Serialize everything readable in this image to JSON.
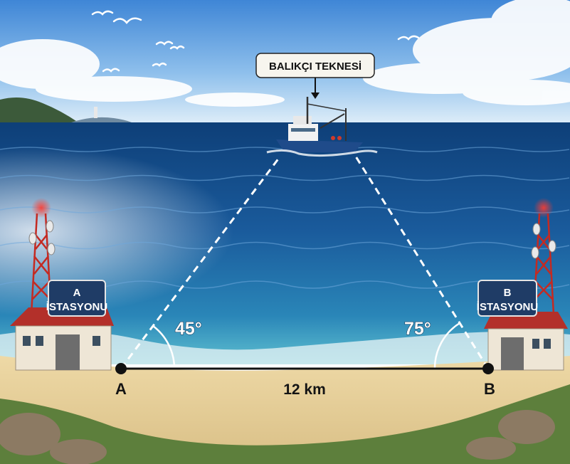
{
  "diagram": {
    "boat_label": "BALIKÇI TEKNESİ",
    "station_a": {
      "letter": "A",
      "name": "İSTASYONU"
    },
    "station_b": {
      "letter": "B",
      "name": "İSTASYONU"
    },
    "angle_a": "45°",
    "angle_b": "75°",
    "point_a": "A",
    "point_b": "B",
    "distance": "12 km"
  },
  "colors": {
    "sky": "#7fb4e6",
    "sea": "#1b5a9a",
    "sand": "#e4cf9c",
    "roof": "#b3302a",
    "label_box": "#1f3c66",
    "tower_light": "#ff3b30"
  }
}
